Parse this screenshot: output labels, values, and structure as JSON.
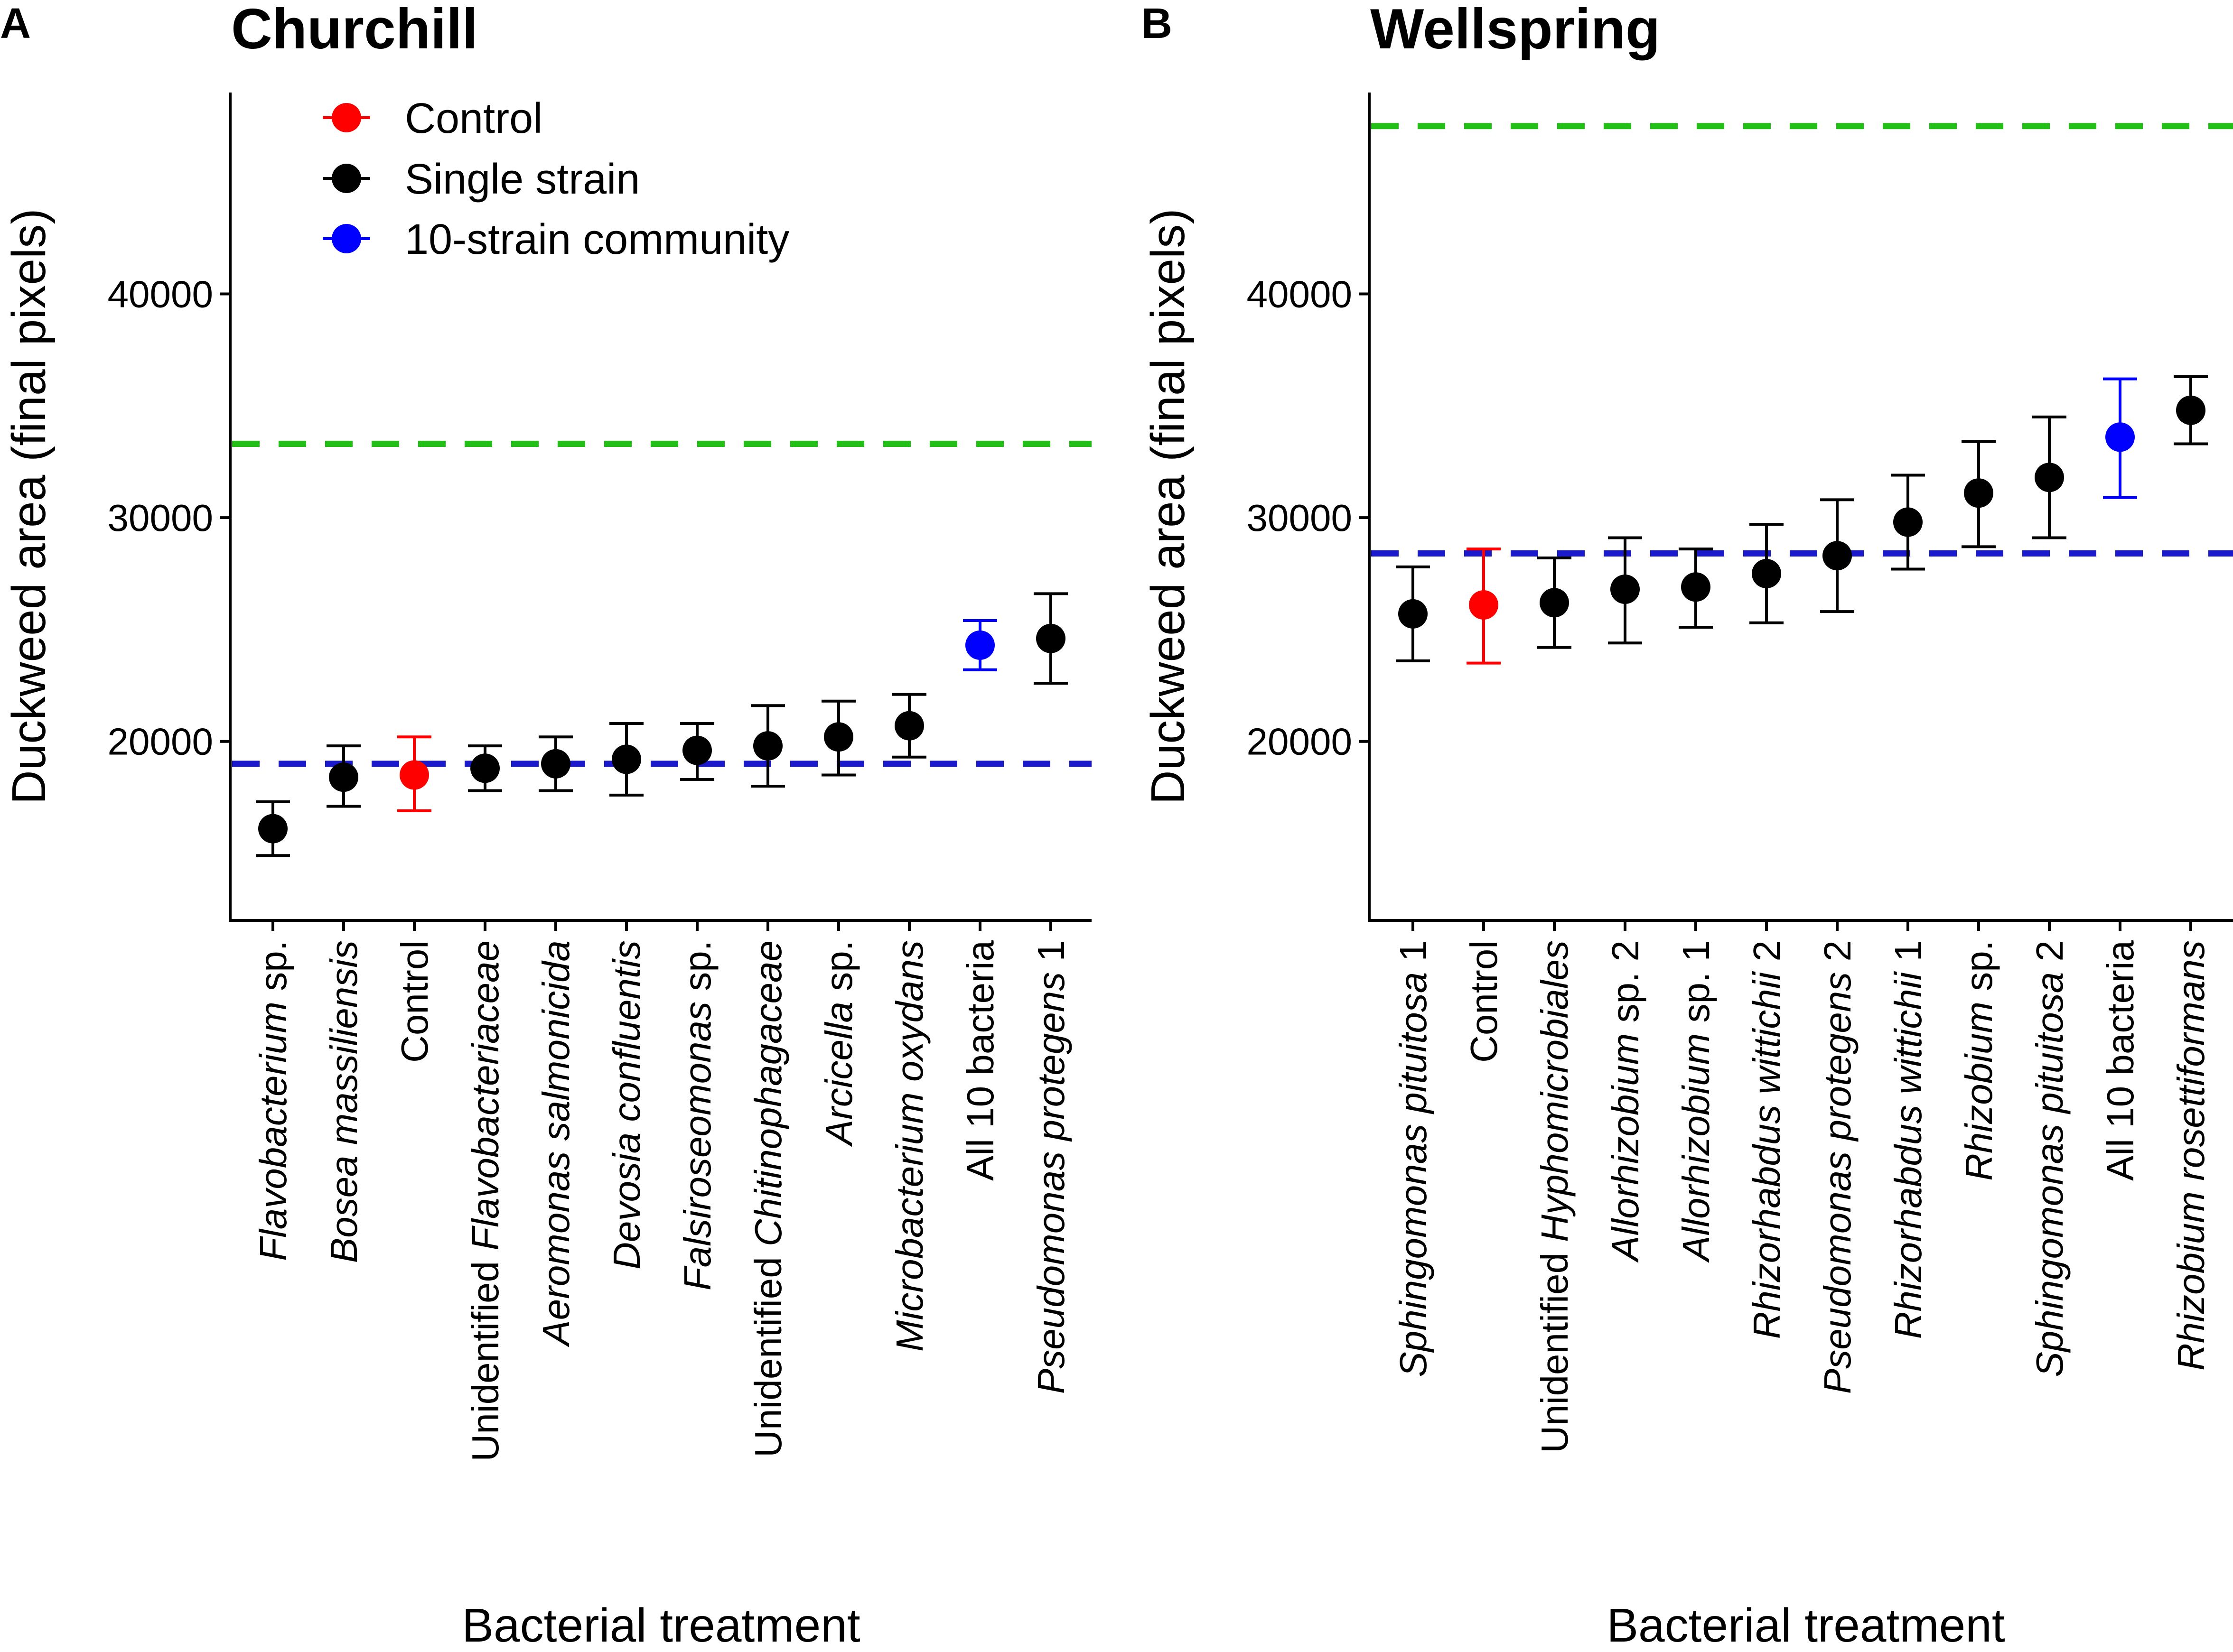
{
  "colors": {
    "control": "#ff0000",
    "single": "#000000",
    "community": "#0000ff",
    "green_ref": "#22c016",
    "blue_ref": "#1a1acc"
  },
  "legend": {
    "items": [
      {
        "label": "Control",
        "color": "#ff0000"
      },
      {
        "label": "Single strain",
        "color": "#000000"
      },
      {
        "label": "10-strain community",
        "color": "#0000ff"
      }
    ]
  },
  "chart_data": [
    {
      "type": "scatter",
      "panel_label": "A",
      "title": "Churchill",
      "xlabel": "Bacterial treatment",
      "ylabel": "Duckweed area (final pixels)",
      "ylim": [
        12000,
        49000
      ],
      "yticks": [
        20000,
        30000,
        40000
      ],
      "ytick_labels": [
        "20000",
        "30000",
        "40000"
      ],
      "reference_lines": [
        {
          "y": 33300,
          "color": "#22c016",
          "style": "dashed"
        },
        {
          "y": 19000,
          "color": "#1a1acc",
          "style": "dashed"
        }
      ],
      "categories": [
        [
          {
            "t": "Flavobacterium",
            "i": true
          },
          {
            "t": " sp.",
            "i": false
          }
        ],
        [
          {
            "t": "Bosea massiliensis",
            "i": true
          }
        ],
        [
          {
            "t": "Control",
            "i": false
          }
        ],
        [
          {
            "t": "Unidentified ",
            "i": false
          },
          {
            "t": "Flavobacteriaceae",
            "i": true
          }
        ],
        [
          {
            "t": "Aeromonas salmonicida",
            "i": true
          }
        ],
        [
          {
            "t": "Devosia confluentis",
            "i": true
          }
        ],
        [
          {
            "t": "Falsiroseomonas",
            "i": true
          },
          {
            "t": " sp.",
            "i": false
          }
        ],
        [
          {
            "t": "Unidentified ",
            "i": false
          },
          {
            "t": "Chitinophagaceae",
            "i": true
          }
        ],
        [
          {
            "t": "Arcicella",
            "i": true
          },
          {
            "t": " sp.",
            "i": false
          }
        ],
        [
          {
            "t": "Microbacterium oxydans",
            "i": true
          }
        ],
        [
          {
            "t": "All 10 bacteria",
            "i": false
          }
        ],
        [
          {
            "t": "Pseudomonas protegens",
            "i": true
          },
          {
            "t": " 1",
            "i": false
          }
        ]
      ],
      "points": [
        {
          "y": 16100,
          "lo": 14900,
          "hi": 17300,
          "group": "single"
        },
        {
          "y": 18400,
          "lo": 17100,
          "hi": 19800,
          "group": "single"
        },
        {
          "y": 18500,
          "lo": 16900,
          "hi": 20200,
          "group": "control"
        },
        {
          "y": 18800,
          "lo": 17800,
          "hi": 19800,
          "group": "single"
        },
        {
          "y": 19000,
          "lo": 17800,
          "hi": 20200,
          "group": "single"
        },
        {
          "y": 19200,
          "lo": 17600,
          "hi": 20800,
          "group": "single"
        },
        {
          "y": 19600,
          "lo": 18300,
          "hi": 20800,
          "group": "single"
        },
        {
          "y": 19800,
          "lo": 18000,
          "hi": 21600,
          "group": "single"
        },
        {
          "y": 20200,
          "lo": 18500,
          "hi": 21800,
          "group": "single"
        },
        {
          "y": 20700,
          "lo": 19300,
          "hi": 22100,
          "group": "single"
        },
        {
          "y": 24300,
          "lo": 23200,
          "hi": 25400,
          "group": "community"
        },
        {
          "y": 24600,
          "lo": 22600,
          "hi": 26600,
          "group": "single"
        }
      ]
    },
    {
      "type": "scatter",
      "panel_label": "B",
      "title": "Wellspring",
      "xlabel": "Bacterial treatment",
      "ylabel": "Duckweed area (final pixels)",
      "ylim": [
        12000,
        49000
      ],
      "yticks": [
        20000,
        30000,
        40000
      ],
      "ytick_labels": [
        "20000",
        "30000",
        "40000"
      ],
      "reference_lines": [
        {
          "y": 47500,
          "color": "#22c016",
          "style": "dashed"
        },
        {
          "y": 28400,
          "color": "#1a1acc",
          "style": "dashed"
        }
      ],
      "categories": [
        [
          {
            "t": "Sphingomonas pituitosa",
            "i": true
          },
          {
            "t": " 1",
            "i": false
          }
        ],
        [
          {
            "t": "Control",
            "i": false
          }
        ],
        [
          {
            "t": "Unidentified ",
            "i": false
          },
          {
            "t": "Hyphomicrobiales",
            "i": true
          }
        ],
        [
          {
            "t": "Allorhizobium",
            "i": true
          },
          {
            "t": " sp. 2",
            "i": false
          }
        ],
        [
          {
            "t": "Allorhizobium",
            "i": true
          },
          {
            "t": " sp. 1",
            "i": false
          }
        ],
        [
          {
            "t": "Rhizorhabdus wittichii",
            "i": true
          },
          {
            "t": " 2",
            "i": false
          }
        ],
        [
          {
            "t": "Pseudomonas protegens",
            "i": true
          },
          {
            "t": " 2",
            "i": false
          }
        ],
        [
          {
            "t": "Rhizorhabdus wittichii",
            "i": true
          },
          {
            "t": " 1",
            "i": false
          }
        ],
        [
          {
            "t": "Rhizobium",
            "i": true
          },
          {
            "t": " sp.",
            "i": false
          }
        ],
        [
          {
            "t": "Sphingomonas pituitosa",
            "i": true
          },
          {
            "t": " 2",
            "i": false
          }
        ],
        [
          {
            "t": "All 10 bacteria",
            "i": false
          }
        ],
        [
          {
            "t": "Rhizobium rosettiformans",
            "i": true
          }
        ]
      ],
      "points": [
        {
          "y": 25700,
          "lo": 23600,
          "hi": 27800,
          "group": "single"
        },
        {
          "y": 26100,
          "lo": 23500,
          "hi": 28600,
          "group": "control"
        },
        {
          "y": 26200,
          "lo": 24200,
          "hi": 28200,
          "group": "single"
        },
        {
          "y": 26800,
          "lo": 24400,
          "hi": 29100,
          "group": "single"
        },
        {
          "y": 26900,
          "lo": 25100,
          "hi": 28600,
          "group": "single"
        },
        {
          "y": 27500,
          "lo": 25300,
          "hi": 29700,
          "group": "single"
        },
        {
          "y": 28300,
          "lo": 25800,
          "hi": 30800,
          "group": "single"
        },
        {
          "y": 29800,
          "lo": 27700,
          "hi": 31900,
          "group": "single"
        },
        {
          "y": 31100,
          "lo": 28700,
          "hi": 33400,
          "group": "single"
        },
        {
          "y": 31800,
          "lo": 29100,
          "hi": 34500,
          "group": "single"
        },
        {
          "y": 33600,
          "lo": 30900,
          "hi": 36200,
          "group": "community"
        },
        {
          "y": 34800,
          "lo": 33300,
          "hi": 36300,
          "group": "single"
        }
      ]
    }
  ]
}
